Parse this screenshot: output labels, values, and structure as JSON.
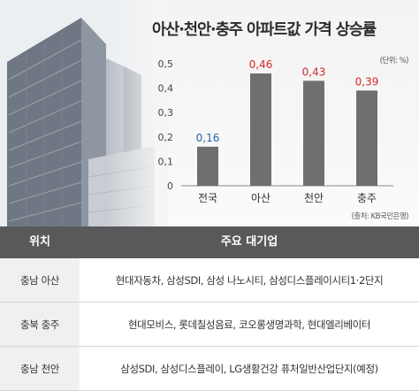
{
  "chart_data": {
    "type": "bar",
    "title": "아산·천안·충주 아파트값 가격 상승률",
    "unit": "(단위: %)",
    "source": "(출처: KB국민은행)",
    "categories": [
      "전국",
      "아산",
      "천안",
      "충주"
    ],
    "values": [
      0.16,
      0.46,
      0.43,
      0.39
    ],
    "value_labels": [
      "0,16",
      "0,46",
      "0,43",
      "0,39"
    ],
    "label_colors": [
      "#2a63a8",
      "#d6282b",
      "#d6282b",
      "#d6282b"
    ],
    "bar_color": "#6f6f71",
    "yticks": [
      "0",
      "0,1",
      "0,2",
      "0,3",
      "0,4",
      "0,5"
    ],
    "ylim": [
      0,
      0.5
    ],
    "grid": false
  },
  "table": {
    "headers": [
      "위치",
      "주요 대기업"
    ],
    "rows": [
      {
        "location": "충남 아산",
        "companies": "현대자동차, 삼성SDI, 삼성 나노시티, 삼성디스플레이시티1·2단지"
      },
      {
        "location": "충북 충주",
        "companies": "현대모비스, 롯데칠성음료, 코오롱생명과학, 현대엘리베이터"
      },
      {
        "location": "충남 천안",
        "companies": "삼성SDI, 삼성디스플레이, LG생활건강 퓨처일반산업단지(예정)"
      }
    ]
  }
}
